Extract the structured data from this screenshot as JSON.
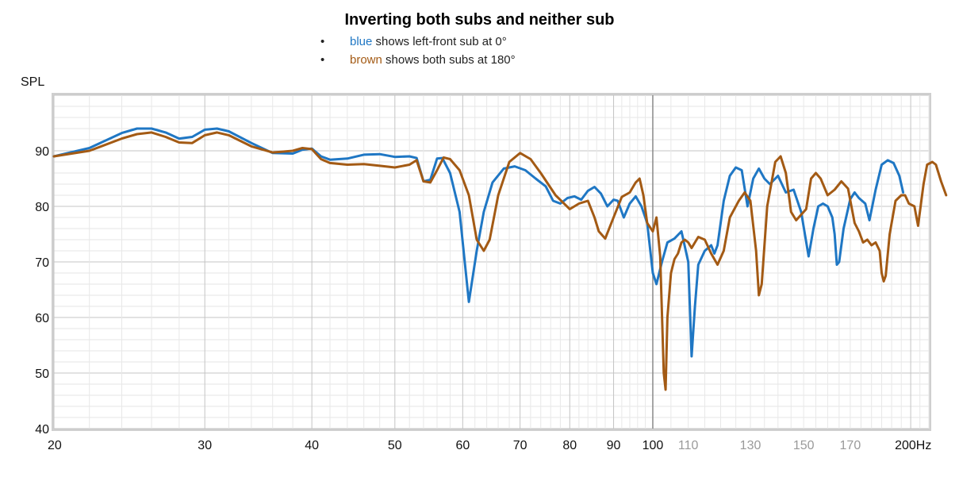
{
  "chart_data": {
    "type": "line",
    "title": "Inverting both subs and neither sub",
    "legend": [
      {
        "color_word": "blue",
        "text": "shows left-front sub at 0°",
        "color": "#1f77c4"
      },
      {
        "color_word": "brown",
        "text": "shows both subs at 180°",
        "color": "#a35a14"
      }
    ],
    "ylabel": "SPL",
    "ylim": [
      40,
      100
    ],
    "xlim": [
      20,
      210
    ],
    "x_scale": "log",
    "grid": true,
    "y_ticks": [
      "40",
      "50",
      "60",
      "70",
      "80",
      "90"
    ],
    "x_ticks_major": [
      {
        "v": 20,
        "label": "20"
      },
      {
        "v": 30,
        "label": "30"
      },
      {
        "v": 40,
        "label": "40"
      },
      {
        "v": 50,
        "label": "50"
      },
      {
        "v": 60,
        "label": "60"
      },
      {
        "v": 70,
        "label": "70"
      },
      {
        "v": 80,
        "label": "80"
      },
      {
        "v": 90,
        "label": "90"
      },
      {
        "v": 100,
        "label": "100"
      },
      {
        "v": 200,
        "label": "200Hz"
      }
    ],
    "x_ticks_minor": [
      {
        "v": 110,
        "label": "110"
      },
      {
        "v": 130,
        "label": "130"
      },
      {
        "v": 150,
        "label": "150"
      },
      {
        "v": 170,
        "label": "170"
      }
    ],
    "series": [
      {
        "color": "#1f77c4",
        "points": [
          [
            20,
            89
          ],
          [
            22,
            90.5
          ],
          [
            24,
            93.2
          ],
          [
            25,
            94
          ],
          [
            26,
            94
          ],
          [
            27,
            93.3
          ],
          [
            28,
            92.2
          ],
          [
            29,
            92.5
          ],
          [
            30,
            93.8
          ],
          [
            31,
            94
          ],
          [
            32,
            93.5
          ],
          [
            34,
            91.4
          ],
          [
            36,
            89.6
          ],
          [
            38,
            89.5
          ],
          [
            39,
            90.2
          ],
          [
            40,
            90.4
          ],
          [
            41,
            89
          ],
          [
            42,
            88.4
          ],
          [
            44,
            88.6
          ],
          [
            46,
            89.3
          ],
          [
            48,
            89.4
          ],
          [
            50,
            88.9
          ],
          [
            52,
            89
          ],
          [
            53,
            88.7
          ],
          [
            54,
            84.5
          ],
          [
            55,
            84.8
          ],
          [
            56,
            88.6
          ],
          [
            56.8,
            88.7
          ],
          [
            58,
            86
          ],
          [
            59.5,
            79
          ],
          [
            61,
            62.8
          ],
          [
            62.3,
            72
          ],
          [
            63.5,
            79
          ],
          [
            65,
            84.3
          ],
          [
            67,
            86.8
          ],
          [
            69,
            87.2
          ],
          [
            71,
            86.5
          ],
          [
            73,
            85
          ],
          [
            75,
            83.6
          ],
          [
            76.5,
            81
          ],
          [
            78,
            80.5
          ],
          [
            79.5,
            81.5
          ],
          [
            81,
            81.8
          ],
          [
            82.5,
            81.2
          ],
          [
            84,
            82.8
          ],
          [
            85.5,
            83.5
          ],
          [
            87,
            82.3
          ],
          [
            88.5,
            80
          ],
          [
            90,
            81.2
          ],
          [
            91,
            81
          ],
          [
            92.5,
            78
          ],
          [
            94,
            80.5
          ],
          [
            95.5,
            81.8
          ],
          [
            97,
            80
          ],
          [
            98.5,
            77
          ],
          [
            100,
            68
          ],
          [
            101,
            66
          ],
          [
            102.5,
            70
          ],
          [
            104,
            73.5
          ],
          [
            106,
            74.2
          ],
          [
            108,
            75.5
          ],
          [
            110,
            70
          ],
          [
            111,
            53
          ],
          [
            112,
            62
          ],
          [
            113,
            69.5
          ],
          [
            115,
            72
          ],
          [
            117,
            73
          ],
          [
            118,
            71.5
          ],
          [
            119,
            73
          ],
          [
            121,
            81
          ],
          [
            123,
            85.5
          ],
          [
            125,
            87
          ],
          [
            127,
            86.5
          ],
          [
            129,
            80
          ],
          [
            131,
            85
          ],
          [
            133,
            86.8
          ],
          [
            135,
            85
          ],
          [
            137,
            84
          ],
          [
            140,
            85.5
          ],
          [
            143,
            82.5
          ],
          [
            146,
            83
          ],
          [
            149,
            79
          ],
          [
            152,
            71
          ],
          [
            154,
            76
          ],
          [
            156,
            80
          ],
          [
            158,
            80.5
          ],
          [
            160,
            80
          ],
          [
            162,
            78
          ],
          [
            163,
            75
          ],
          [
            164,
            69.5
          ],
          [
            165,
            70
          ],
          [
            167,
            76
          ],
          [
            170,
            81.3
          ],
          [
            172,
            82.5
          ],
          [
            174,
            81.5
          ],
          [
            177,
            80.5
          ],
          [
            179,
            77.5
          ],
          [
            182,
            83
          ],
          [
            185,
            87.5
          ],
          [
            188,
            88.3
          ],
          [
            191,
            87.8
          ],
          [
            194,
            85.5
          ],
          [
            196,
            82.5
          ]
        ]
      },
      {
        "color": "#a35a14",
        "points": [
          [
            20,
            89
          ],
          [
            22,
            90
          ],
          [
            24,
            92.2
          ],
          [
            25,
            93
          ],
          [
            26,
            93.3
          ],
          [
            27,
            92.5
          ],
          [
            28,
            91.5
          ],
          [
            29,
            91.4
          ],
          [
            30,
            92.8
          ],
          [
            31,
            93.3
          ],
          [
            32,
            92.8
          ],
          [
            34,
            90.8
          ],
          [
            36,
            89.7
          ],
          [
            38,
            90
          ],
          [
            39,
            90.5
          ],
          [
            40,
            90.3
          ],
          [
            41,
            88.5
          ],
          [
            42,
            87.8
          ],
          [
            44,
            87.5
          ],
          [
            46,
            87.6
          ],
          [
            48,
            87.3
          ],
          [
            50,
            87
          ],
          [
            52,
            87.5
          ],
          [
            53,
            88.3
          ],
          [
            54,
            84.5
          ],
          [
            55,
            84.3
          ],
          [
            56,
            86.5
          ],
          [
            57,
            88.8
          ],
          [
            58,
            88.5
          ],
          [
            59.5,
            86.5
          ],
          [
            61,
            82
          ],
          [
            62.3,
            74
          ],
          [
            63.5,
            72
          ],
          [
            64.5,
            74
          ],
          [
            66,
            82
          ],
          [
            68,
            88
          ],
          [
            70,
            89.6
          ],
          [
            72,
            88.5
          ],
          [
            74,
            86
          ],
          [
            77,
            82
          ],
          [
            80,
            79.5
          ],
          [
            82,
            80.5
          ],
          [
            84,
            81
          ],
          [
            85.5,
            78
          ],
          [
            86.5,
            75.5
          ],
          [
            88,
            74.2
          ],
          [
            90,
            78
          ],
          [
            92,
            81.7
          ],
          [
            94,
            82.5
          ],
          [
            95.5,
            84.3
          ],
          [
            96.5,
            85
          ],
          [
            97.5,
            82
          ],
          [
            98.5,
            77
          ],
          [
            100,
            75.5
          ],
          [
            101,
            78
          ],
          [
            102,
            71
          ],
          [
            103,
            50
          ],
          [
            103.5,
            47
          ],
          [
            104,
            60
          ],
          [
            105,
            68
          ],
          [
            106,
            70.5
          ],
          [
            107,
            71.5
          ],
          [
            108,
            73.5
          ],
          [
            109,
            74
          ],
          [
            110,
            73.5
          ],
          [
            111,
            72.5
          ],
          [
            113,
            74.5
          ],
          [
            115,
            74
          ],
          [
            117,
            71.5
          ],
          [
            119,
            69.5
          ],
          [
            121,
            72
          ],
          [
            123,
            78
          ],
          [
            126,
            81
          ],
          [
            128,
            82.5
          ],
          [
            130,
            81
          ],
          [
            132,
            72
          ],
          [
            133,
            64
          ],
          [
            134,
            66
          ],
          [
            136,
            80
          ],
          [
            139,
            88
          ],
          [
            141,
            89
          ],
          [
            143,
            86
          ],
          [
            145,
            79
          ],
          [
            147,
            77.5
          ],
          [
            149,
            78.5
          ],
          [
            151,
            79.5
          ],
          [
            153,
            85
          ],
          [
            155,
            86
          ],
          [
            157,
            85
          ],
          [
            160,
            82
          ],
          [
            163,
            83
          ],
          [
            166,
            84.5
          ],
          [
            169,
            83.2
          ],
          [
            172,
            77
          ],
          [
            174,
            75.5
          ],
          [
            176,
            73.5
          ],
          [
            178,
            74
          ],
          [
            180,
            73
          ],
          [
            182,
            73.5
          ],
          [
            184,
            72
          ],
          [
            185,
            68
          ],
          [
            186,
            66.5
          ],
          [
            187,
            67.5
          ],
          [
            189,
            75
          ],
          [
            192,
            81
          ],
          [
            195,
            82
          ],
          [
            197,
            82
          ],
          [
            199,
            80.5
          ],
          [
            202,
            80
          ],
          [
            204,
            76.5
          ],
          [
            207,
            84
          ],
          [
            209,
            87.5
          ],
          [
            212,
            88
          ],
          [
            214,
            87.5
          ],
          [
            217,
            84.5
          ],
          [
            220,
            82
          ]
        ]
      }
    ]
  }
}
